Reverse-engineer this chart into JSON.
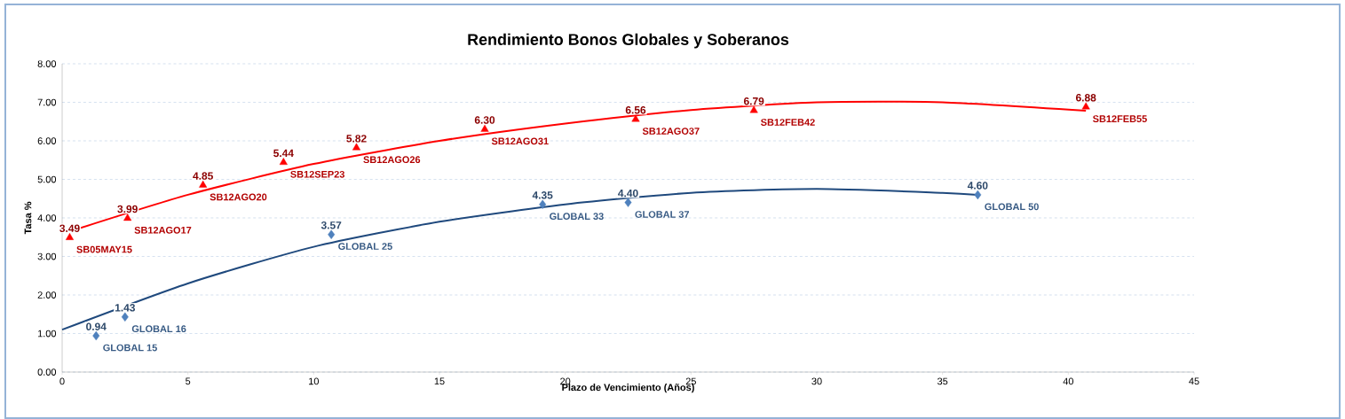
{
  "chart_data": {
    "type": "scatter",
    "title": "Rendimiento Bonos Globales y Soberanos",
    "xlabel": "Plazo de Vencimiento  (Años)",
    "ylabel": "Tasa %",
    "xlim": [
      0,
      45
    ],
    "xticks": [
      0,
      5,
      10,
      15,
      20,
      25,
      30,
      35,
      40,
      45
    ],
    "ylim": [
      0,
      8
    ],
    "yticks": [
      {
        "value": 0,
        "label": "0.00"
      },
      {
        "value": 1,
        "label": "1.00"
      },
      {
        "value": 2,
        "label": "2.00"
      },
      {
        "value": 3,
        "label": "3.00"
      },
      {
        "value": 4,
        "label": "4.00"
      },
      {
        "value": 5,
        "label": "5.00"
      },
      {
        "value": 6,
        "label": "6.00"
      },
      {
        "value": 7,
        "label": "7.00"
      },
      {
        "value": 8,
        "label": "8.00"
      }
    ],
    "grid": "y",
    "series": [
      {
        "marker": "triangle",
        "color": "#ff0000",
        "x": [
          0.3,
          2.6,
          5.6,
          8.8,
          11.7,
          16.8,
          22.8,
          27.5,
          40.7
        ],
        "values": [
          3.49,
          3.99,
          4.85,
          5.44,
          5.82,
          6.3,
          6.56,
          6.79,
          6.88
        ],
        "value_labels": [
          "3.49",
          "3.99",
          "4.85",
          "5.44",
          "5.82",
          "6.30",
          "6.56",
          "6.79",
          "6.88"
        ]
      },
      {
        "marker": "diamond",
        "color": "#4f81bd",
        "x": [
          1.35,
          2.5,
          10.7,
          19.1,
          22.5,
          36.4
        ],
        "values": [
          0.94,
          1.43,
          3.57,
          4.35,
          4.4,
          4.6
        ],
        "value_labels": [
          "0.94",
          "1.43",
          "3.57",
          "4.35",
          "4.40",
          "4.60"
        ]
      },
      {
        "type": "line",
        "color": "#ff0000",
        "x": [
          0.3,
          5,
          10,
          15,
          20,
          25,
          30,
          35,
          40.7
        ],
        "values": [
          3.65,
          4.6,
          5.4,
          6.0,
          6.45,
          6.8,
          7.0,
          7.0,
          6.78
        ]
      },
      {
        "type": "line",
        "color": "#1f497d",
        "x": [
          0,
          5,
          10,
          15,
          20,
          25,
          30,
          35,
          36.4
        ],
        "values": [
          1.1,
          2.3,
          3.25,
          3.9,
          4.35,
          4.65,
          4.75,
          4.65,
          4.6
        ]
      }
    ],
    "annotations": [
      {
        "text": "SB05MAY15",
        "x": 0.3,
        "y": 3.49
      },
      {
        "text": "SB12AGO17",
        "x": 2.6,
        "y": 3.99
      },
      {
        "text": "SB12AGO20",
        "x": 5.6,
        "y": 4.85
      },
      {
        "text": "SB12SEP23",
        "x": 8.8,
        "y": 5.44
      },
      {
        "text": "SB12AGO26",
        "x": 11.7,
        "y": 5.82
      },
      {
        "text": "SB12AGO31",
        "x": 16.8,
        "y": 6.3
      },
      {
        "text": "SB12AGO37",
        "x": 22.8,
        "y": 6.56
      },
      {
        "text": "SB12FEB42",
        "x": 27.5,
        "y": 6.79
      },
      {
        "text": "SB12FEB55",
        "x": 40.7,
        "y": 6.88
      },
      {
        "text": "GLOBAL 15",
        "x": 1.35,
        "y": 0.94
      },
      {
        "text": "GLOBAL 16",
        "x": 2.5,
        "y": 1.43
      },
      {
        "text": "GLOBAL 25",
        "x": 10.7,
        "y": 3.57
      },
      {
        "text": "GLOBAL 33",
        "x": 19.1,
        "y": 4.35
      },
      {
        "text": "GLOBAL 37",
        "x": 22.5,
        "y": 4.4
      },
      {
        "text": "GLOBAL 50",
        "x": 36.4,
        "y": 4.6
      }
    ]
  }
}
